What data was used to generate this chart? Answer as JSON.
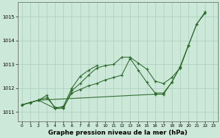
{
  "background_color": "#cce8d8",
  "line_color": "#2d6a2d",
  "grid_color": "#aaccbb",
  "xlabel": "Graphe pression niveau de la mer (hPa)",
  "xlabel_fontsize": 6.5,
  "xlim": [
    -0.5,
    23.5
  ],
  "ylim": [
    1010.6,
    1015.6
  ],
  "yticks": [
    1011,
    1012,
    1013,
    1014,
    1015
  ],
  "xticks": [
    0,
    1,
    2,
    3,
    4,
    5,
    6,
    7,
    8,
    9,
    10,
    11,
    12,
    13,
    14,
    15,
    16,
    17,
    18,
    19,
    20,
    21,
    22,
    23
  ],
  "series": [
    {
      "x": [
        0,
        1,
        2,
        3,
        4,
        5,
        6,
        7,
        8,
        9,
        10,
        11,
        12,
        13,
        14,
        15,
        16,
        17,
        18,
        19,
        20,
        21,
        22
      ],
      "y": [
        1011.3,
        1011.4,
        1011.5,
        1011.6,
        1011.2,
        1011.2,
        1011.8,
        1011.95,
        1012.1,
        1012.2,
        1012.35,
        1012.45,
        1012.55,
        1013.25,
        1012.75,
        1012.25,
        1011.8,
        1011.8,
        1012.25,
        1012.9,
        1013.8,
        1014.7,
        1015.15
      ]
    },
    {
      "x": [
        0,
        1,
        2,
        3,
        4,
        5,
        6,
        7,
        8,
        9,
        10,
        11,
        12,
        13,
        14,
        15,
        16,
        17,
        18,
        19,
        20
      ],
      "y": [
        1011.3,
        1011.4,
        1011.5,
        1011.7,
        1011.15,
        1011.15,
        1011.9,
        1012.2,
        1012.55,
        1012.85,
        1012.95,
        1013.0,
        1013.3,
        1013.3,
        1013.05,
        1012.8,
        1012.3,
        1012.2,
        1012.45,
        1012.85,
        1013.8
      ]
    },
    {
      "x": [
        0,
        1,
        2,
        4,
        5,
        6,
        7,
        8,
        9
      ],
      "y": [
        1011.3,
        1011.4,
        1011.5,
        1011.15,
        1011.25,
        1012.0,
        1012.5,
        1012.75,
        1012.95
      ]
    },
    {
      "x": [
        0,
        1,
        2,
        16,
        17,
        18,
        19,
        20,
        21,
        22
      ],
      "y": [
        1011.3,
        1011.4,
        1011.5,
        1011.75,
        1011.75,
        1012.25,
        1012.9,
        1013.8,
        1014.7,
        1015.2
      ]
    }
  ]
}
